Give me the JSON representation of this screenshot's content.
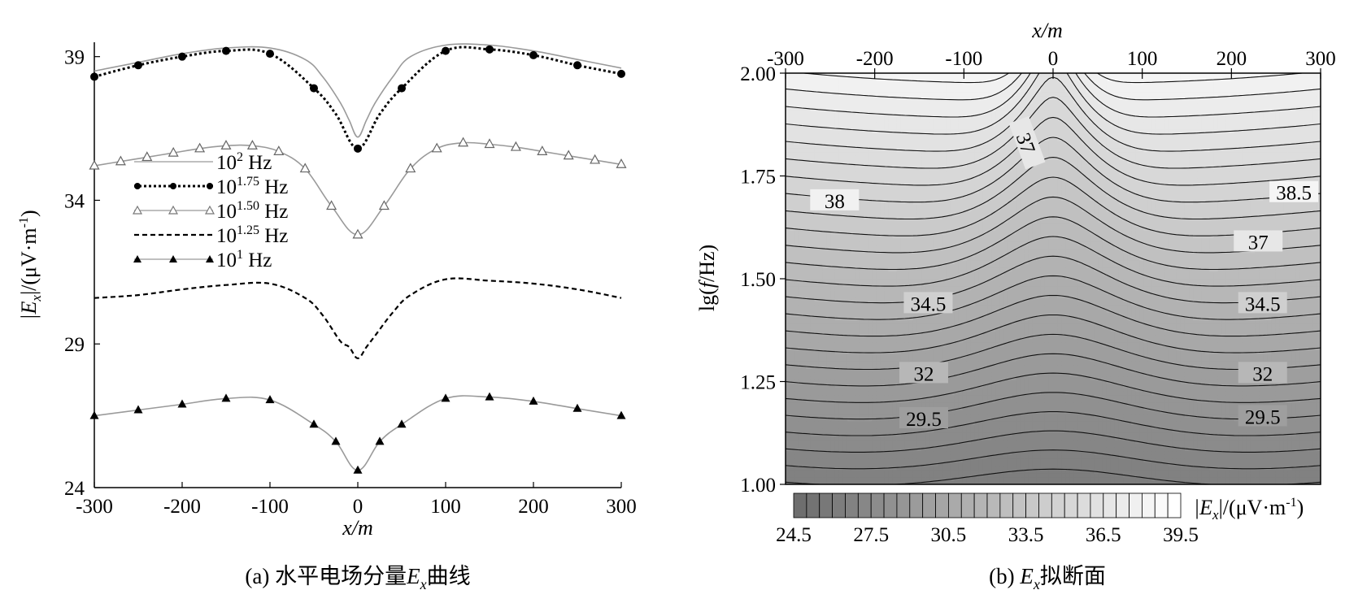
{
  "panel_a": {
    "caption_prefix": "(a) 水平电场分量",
    "caption_var": "E",
    "caption_sub": "x",
    "caption_suffix": "曲线",
    "xlabel": "x/m",
    "ylabel_abs": "|E",
    "ylabel_sub": "x",
    "ylabel_unit": "|/(μV·m",
    "ylabel_exp": "-1",
    "ylabel_close": ")",
    "legend": [
      {
        "base": "10",
        "exp": "2",
        "unit": " Hz",
        "style": "solid-gray",
        "marker": "none"
      },
      {
        "base": "10",
        "exp": "1.75",
        "unit": " Hz",
        "style": "dotted-black",
        "marker": "circle"
      },
      {
        "base": "10",
        "exp": "1.50",
        "unit": " Hz",
        "style": "solid-gray",
        "marker": "triangle-open"
      },
      {
        "base": "10",
        "exp": "1.25",
        "unit": " Hz",
        "style": "dashed-black",
        "marker": "none"
      },
      {
        "base": "10",
        "exp": "1",
        "unit": " Hz",
        "style": "solid-gray",
        "marker": "triangle-filled"
      }
    ]
  },
  "panel_b": {
    "caption_prefix": "(b) ",
    "caption_var": "E",
    "caption_sub": "x",
    "caption_suffix": "拟断面",
    "xlabel": "x/m",
    "ylabel_pre": "lg(",
    "ylabel_var": "f",
    "ylabel_post": "/Hz)",
    "colorbar_label_abs": "|E",
    "colorbar_label_sub": "x",
    "colorbar_label_unit": "|/(μV·m",
    "colorbar_label_exp": "-1",
    "colorbar_label_close": ")",
    "colorbar_ticks": [
      "24.5",
      "27.5",
      "30.5",
      "33.5",
      "36.5",
      "39.5"
    ],
    "contour_labels": [
      "37",
      "38",
      "38.5",
      "37",
      "34.5",
      "34.5",
      "32",
      "32",
      "29.5",
      "29.5"
    ]
  },
  "chart_data": [
    {
      "type": "line",
      "title": "(a) 水平电场分量Ex曲线",
      "xlabel": "x/m",
      "ylabel": "|Ex|/(μV·m-1)",
      "xlim": [
        -300,
        300
      ],
      "ylim": [
        24,
        39.5
      ],
      "xticks": [
        -300,
        -200,
        -100,
        0,
        100,
        200,
        300
      ],
      "yticks": [
        24,
        29,
        34,
        39
      ],
      "series": [
        {
          "name": "10^2 Hz",
          "x": [
            -300,
            -250,
            -200,
            -150,
            -100,
            -60,
            -40,
            -20,
            -10,
            0,
            10,
            20,
            40,
            60,
            100,
            150,
            200,
            250,
            300
          ],
          "y": [
            38.5,
            38.8,
            39.1,
            39.3,
            39.3,
            38.9,
            38.3,
            37.4,
            36.8,
            36.2,
            36.8,
            37.4,
            38.3,
            39.0,
            39.4,
            39.4,
            39.2,
            38.9,
            38.6
          ]
        },
        {
          "name": "10^1.75 Hz",
          "x": [
            -300,
            -250,
            -200,
            -150,
            -100,
            -50,
            -25,
            0,
            25,
            50,
            100,
            150,
            200,
            250,
            300
          ],
          "y": [
            38.3,
            38.7,
            39.0,
            39.2,
            39.1,
            37.9,
            37.0,
            35.8,
            37.0,
            37.9,
            39.2,
            39.25,
            39.05,
            38.7,
            38.4
          ],
          "markers_x": [
            -300,
            -250,
            -200,
            -150,
            -100,
            -50,
            0,
            50,
            100,
            150,
            200,
            250,
            300
          ]
        },
        {
          "name": "10^1.50 Hz",
          "x": [
            -300,
            -270,
            -240,
            -210,
            -180,
            -150,
            -120,
            -90,
            -60,
            -30,
            0,
            30,
            60,
            90,
            120,
            150,
            180,
            210,
            240,
            270,
            300
          ],
          "y": [
            35.2,
            35.35,
            35.5,
            35.65,
            35.8,
            35.9,
            35.9,
            35.7,
            35.1,
            33.8,
            32.8,
            33.8,
            35.1,
            35.8,
            36.0,
            35.95,
            35.85,
            35.7,
            35.55,
            35.4,
            35.25
          ]
        },
        {
          "name": "10^1.25 Hz",
          "x": [
            -300,
            -250,
            -200,
            -150,
            -100,
            -60,
            -40,
            -20,
            -10,
            0,
            10,
            20,
            40,
            60,
            100,
            150,
            200,
            250,
            300
          ],
          "y": [
            30.6,
            30.7,
            30.9,
            31.05,
            31.1,
            30.6,
            30.0,
            29.1,
            28.9,
            28.5,
            28.9,
            29.3,
            30.1,
            30.7,
            31.25,
            31.2,
            31.1,
            30.9,
            30.6
          ]
        },
        {
          "name": "10^1 Hz",
          "x": [
            -300,
            -250,
            -200,
            -150,
            -100,
            -50,
            -25,
            0,
            25,
            50,
            100,
            150,
            200,
            250,
            300
          ],
          "y": [
            26.5,
            26.7,
            26.9,
            27.1,
            27.05,
            26.2,
            25.6,
            24.6,
            25.6,
            26.2,
            27.1,
            27.15,
            27.0,
            26.75,
            26.5
          ]
        }
      ]
    },
    {
      "type": "heatmap",
      "title": "(b) Ex拟断面",
      "xlabel": "x/m",
      "ylabel": "lg(f/Hz)",
      "xlim": [
        -300,
        300
      ],
      "ylim": [
        1.0,
        2.0
      ],
      "xticks": [
        -300,
        -200,
        -100,
        0,
        100,
        200,
        300
      ],
      "yticks": [
        1.0,
        1.25,
        1.5,
        1.75,
        2.0
      ],
      "colorbar": {
        "min": 24.5,
        "max": 39.5,
        "step": 0.5,
        "ticks": [
          24.5,
          27.5,
          30.5,
          33.5,
          36.5,
          39.5
        ],
        "low_color": "#6e6e6e",
        "high_color": "#ffffff"
      },
      "contour_levels": {
        "start": 25.0,
        "end": 39.0,
        "step": 0.5
      },
      "contour_labels": [
        {
          "value": "37",
          "x": -30,
          "lgf": 1.83
        },
        {
          "value": "38",
          "x": -245,
          "lgf": 1.69
        },
        {
          "value": "38.5",
          "x": 270,
          "lgf": 1.71
        },
        {
          "value": "37",
          "x": 230,
          "lgf": 1.59
        },
        {
          "value": "34.5",
          "x": -140,
          "lgf": 1.44
        },
        {
          "value": "34.5",
          "x": 235,
          "lgf": 1.44
        },
        {
          "value": "32",
          "x": -145,
          "lgf": 1.27
        },
        {
          "value": "32",
          "x": 235,
          "lgf": 1.27
        },
        {
          "value": "29.5",
          "x": -145,
          "lgf": 1.16
        },
        {
          "value": "29.5",
          "x": 235,
          "lgf": 1.165
        }
      ]
    }
  ]
}
